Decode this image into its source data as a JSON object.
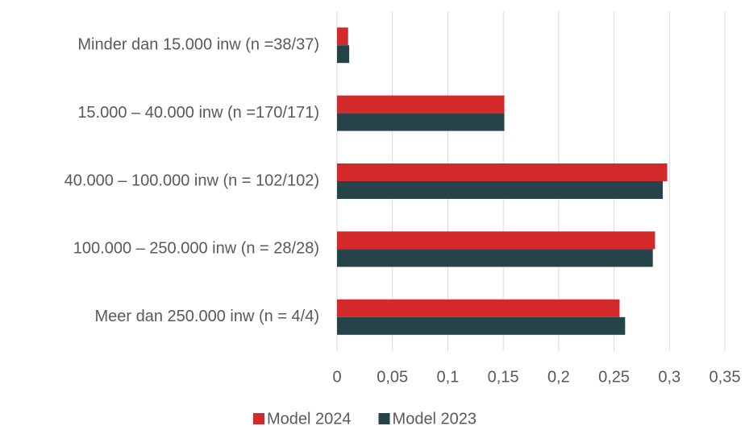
{
  "chart_data": {
    "type": "bar",
    "orientation": "horizontal",
    "categories": [
      "Minder dan 15.000 inw (n =38/37)",
      "15.000 – 40.000 inw (n =170/171)",
      "40.000 – 100.000 inw (n = 102/102)",
      "100.000 – 250.000 inw (n = 28/28)",
      "Meer dan 250.000 inw (n = 4/4)"
    ],
    "series": [
      {
        "name": "Model 2024",
        "color": "#d3292b",
        "values": [
          0.01,
          0.151,
          0.298,
          0.287,
          0.255
        ]
      },
      {
        "name": "Model 2023",
        "color": "#26434a",
        "values": [
          0.011,
          0.151,
          0.294,
          0.285,
          0.26
        ]
      }
    ],
    "xlim": [
      0,
      0.35
    ],
    "xticks": [
      0,
      {
        "value": 0.05,
        "label": "0,05"
      },
      {
        "value": 0.1,
        "label": "0,1"
      },
      {
        "value": 0.15,
        "label": "0,15"
      },
      {
        "value": 0.2,
        "label": "0,2"
      },
      {
        "value": 0.25,
        "label": "0,25"
      },
      {
        "value": 0.3,
        "label": "0,3"
      },
      {
        "value": 0.35,
        "label": "0,35"
      }
    ],
    "grid": true,
    "legend": "bottom"
  }
}
